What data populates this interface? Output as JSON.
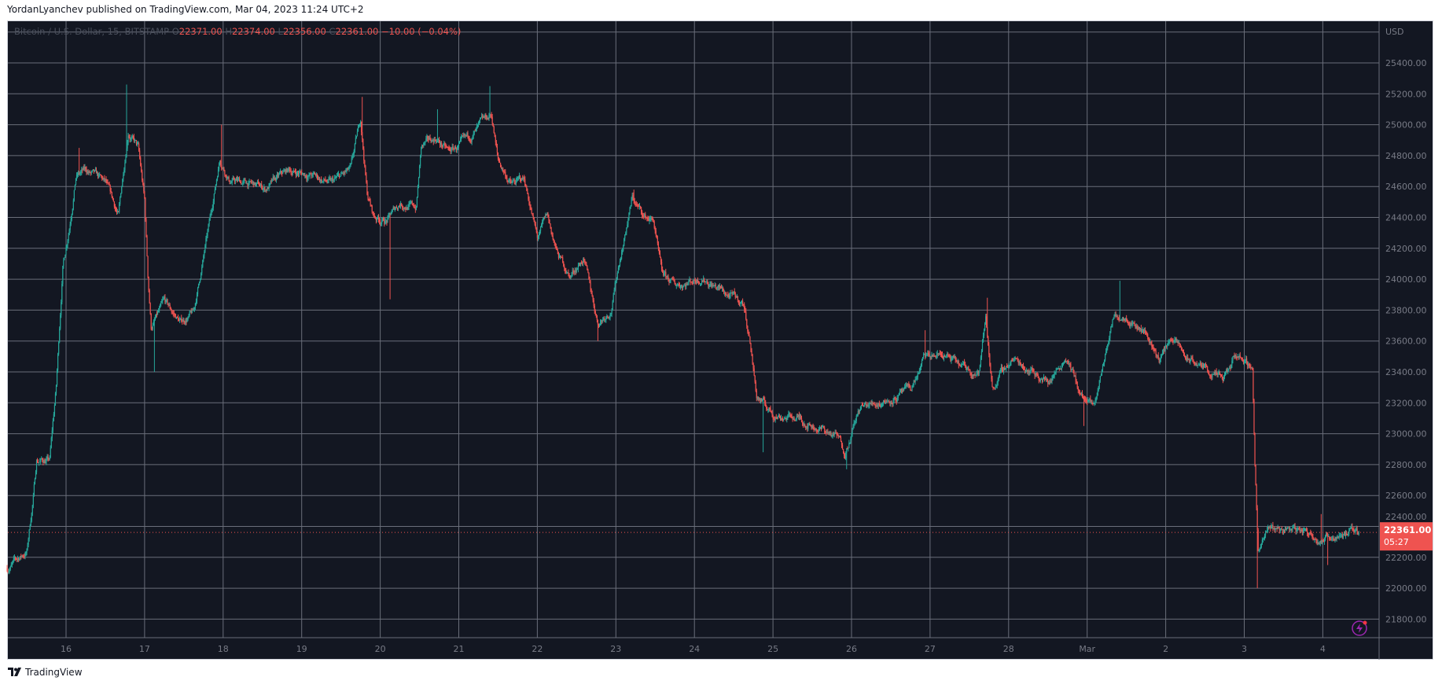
{
  "header": {
    "published": "YordanLyanchev published on TradingView.com, Mar 04, 2023 11:24 UTC+2"
  },
  "legend": {
    "symbol": "Bitcoin / U.S. Dollar, 15, BITSTAMP",
    "o_label": "O",
    "open": "22371.00",
    "h_label": "H",
    "high": "22374.00",
    "l_label": "L",
    "low": "22356.00",
    "c_label": "C",
    "close": "22361.00",
    "change": "−10.00 (−0.04%)"
  },
  "price_label": {
    "value": "22361.00",
    "countdown": "05:27"
  },
  "footer": {
    "brand": "TradingView"
  },
  "colors": {
    "up": "#26a69a",
    "down": "#ef5350",
    "background": "#131722",
    "grid": "#6a6e7a",
    "price_tag": "#ef5350",
    "lightning": "#9c27b0"
  },
  "icons": [
    "tradingview-logo-icon",
    "lightning-icon"
  ],
  "chart_data": {
    "type": "candlestick",
    "title": "Bitcoin / U.S. Dollar, 15, BITSTAMP",
    "interval": "15",
    "currency": "USD",
    "ylim": [
      21700,
      25700
    ],
    "y_ticks": [
      25400,
      25200,
      25000,
      24800,
      24600,
      24400,
      24200,
      24000,
      23800,
      23600,
      23400,
      23200,
      23000,
      22800,
      22600,
      22400,
      22200,
      22000,
      21800
    ],
    "y_tick_labels": [
      "25400.00",
      "25200.00",
      "25000.00",
      "24800.00",
      "24600.00",
      "24400.00",
      "24200.00",
      "24000.00",
      "23800.00",
      "23600.00",
      "23400.00",
      "23200.00",
      "23000.00",
      "22800.00",
      "22600.00",
      "22400.00",
      "22200.00",
      "22000.00",
      "21800.00"
    ],
    "x_ticks": [
      {
        "label": "16",
        "date": "2023-02-16"
      },
      {
        "label": "17",
        "date": "2023-02-17"
      },
      {
        "label": "18",
        "date": "2023-02-18"
      },
      {
        "label": "19",
        "date": "2023-02-19"
      },
      {
        "label": "20",
        "date": "2023-02-20"
      },
      {
        "label": "21",
        "date": "2023-02-21"
      },
      {
        "label": "22",
        "date": "2023-02-22"
      },
      {
        "label": "23",
        "date": "2023-02-23"
      },
      {
        "label": "24",
        "date": "2023-02-24"
      },
      {
        "label": "25",
        "date": "2023-02-25"
      },
      {
        "label": "26",
        "date": "2023-02-26"
      },
      {
        "label": "27",
        "date": "2023-02-27"
      },
      {
        "label": "28",
        "date": "2023-02-28"
      },
      {
        "label": "Mar",
        "date": "2023-03-01"
      },
      {
        "label": "2",
        "date": "2023-03-02"
      },
      {
        "label": "3",
        "date": "2023-03-03"
      },
      {
        "label": "4",
        "date": "2023-03-04"
      }
    ],
    "grid": true,
    "last_price": 22361,
    "approx_close_path": [
      [
        "2023-02-15T06:00",
        22130
      ],
      [
        "2023-02-15T12:00",
        22235
      ],
      [
        "2023-02-15T14:00",
        22590
      ],
      [
        "2023-02-15T15:00",
        22830
      ],
      [
        "2023-02-15T19:00",
        22830
      ],
      [
        "2023-02-15T21:00",
        23300
      ],
      [
        "2023-02-15T23:00",
        24080
      ],
      [
        "2023-02-16T01:00",
        24350
      ],
      [
        "2023-02-16T03:00",
        24675
      ],
      [
        "2023-02-16T06:00",
        24700
      ],
      [
        "2023-02-16T12:00",
        24615
      ],
      [
        "2023-02-16T16:00",
        24405
      ],
      [
        "2023-02-16T19:00",
        24970
      ],
      [
        "2023-02-16T22:00",
        24850
      ],
      [
        "2023-02-17T00:00",
        24500
      ],
      [
        "2023-02-17T01:00",
        24020
      ],
      [
        "2023-02-17T02:00",
        23690
      ],
      [
        "2023-02-17T06:00",
        23840
      ],
      [
        "2023-02-17T11:00",
        23720
      ],
      [
        "2023-02-17T15:00",
        23780
      ],
      [
        "2023-02-17T18:00",
        24140
      ],
      [
        "2023-02-17T20:00",
        24380
      ],
      [
        "2023-02-17T23:00",
        24790
      ],
      [
        "2023-02-18T02:00",
        24645
      ],
      [
        "2023-02-18T08:00",
        24615
      ],
      [
        "2023-02-18T13:00",
        24585
      ],
      [
        "2023-02-18T20:00",
        24700
      ],
      [
        "2023-02-19T03:00",
        24675
      ],
      [
        "2023-02-19T09:00",
        24615
      ],
      [
        "2023-02-19T15:00",
        24700
      ],
      [
        "2023-02-19T18:00",
        25030
      ],
      [
        "2023-02-19T20:00",
        24555
      ],
      [
        "2023-02-19T22:00",
        24405
      ],
      [
        "2023-02-20T02:00",
        24380
      ],
      [
        "2023-02-20T06:00",
        24495
      ],
      [
        "2023-02-20T11:00",
        24465
      ],
      [
        "2023-02-20T12:30",
        24850
      ],
      [
        "2023-02-20T17:00",
        24910
      ],
      [
        "2023-02-20T21:00",
        24820
      ],
      [
        "2023-02-21T02:00",
        24880
      ],
      [
        "2023-02-21T06:00",
        24970
      ],
      [
        "2023-02-21T10:00",
        25060
      ],
      [
        "2023-02-21T12:00",
        24765
      ],
      [
        "2023-02-21T16:00",
        24615
      ],
      [
        "2023-02-21T20:00",
        24645
      ],
      [
        "2023-02-21T22:00",
        24465
      ],
      [
        "2023-02-22T00:00",
        24260
      ],
      [
        "2023-02-22T03:00",
        24405
      ],
      [
        "2023-02-22T06:00",
        24165
      ],
      [
        "2023-02-22T10:00",
        24020
      ],
      [
        "2023-02-22T14:00",
        24140
      ],
      [
        "2023-02-22T18:30",
        23720
      ],
      [
        "2023-02-22T22:30",
        23810
      ],
      [
        "2023-02-23T01:30",
        24165
      ],
      [
        "2023-02-23T05:00",
        24525
      ],
      [
        "2023-02-23T08:30",
        24405
      ],
      [
        "2023-02-23T11:30",
        24380
      ],
      [
        "2023-02-23T14:00",
        24020
      ],
      [
        "2023-02-23T18:00",
        23960
      ],
      [
        "2023-02-23T22:30",
        23990
      ],
      [
        "2023-02-24T02:30",
        24020
      ],
      [
        "2023-02-24T10:00",
        23900
      ],
      [
        "2023-02-24T15:00",
        23840
      ],
      [
        "2023-02-24T17:00",
        23600
      ],
      [
        "2023-02-24T19:00",
        23245
      ],
      [
        "2023-02-24T23:45",
        23130
      ],
      [
        "2023-02-25T08:00",
        23100
      ],
      [
        "2023-02-25T14:00",
        23040
      ],
      [
        "2023-02-25T19:30",
        22980
      ],
      [
        "2023-02-25T22:00",
        22890
      ],
      [
        "2023-02-26T02:30",
        23160
      ],
      [
        "2023-02-26T09:30",
        23215
      ],
      [
        "2023-02-26T18:00",
        23275
      ],
      [
        "2023-02-26T22:15",
        23485
      ],
      [
        "2023-02-27T04:00",
        23515
      ],
      [
        "2023-02-27T09:30",
        23425
      ],
      [
        "2023-02-27T15:00",
        23400
      ],
      [
        "2023-02-27T17:00",
        23750
      ],
      [
        "2023-02-27T19:00",
        23305
      ],
      [
        "2023-02-28T01:00",
        23485
      ],
      [
        "2023-02-28T06:30",
        23425
      ],
      [
        "2023-02-28T12:00",
        23335
      ],
      [
        "2023-02-28T17:45",
        23515
      ],
      [
        "2023-02-28T22:00",
        23245
      ],
      [
        "2023-03-01T02:00",
        23160
      ],
      [
        "2023-03-01T05:00",
        23455
      ],
      [
        "2023-03-01T08:00",
        23750
      ],
      [
        "2023-03-01T12:00",
        23780
      ],
      [
        "2023-03-01T17:45",
        23660
      ],
      [
        "2023-03-01T22:00",
        23485
      ],
      [
        "2023-03-02T02:00",
        23630
      ],
      [
        "2023-03-02T06:15",
        23485
      ],
      [
        "2023-03-02T12:00",
        23425
      ],
      [
        "2023-03-02T17:30",
        23335
      ],
      [
        "2023-03-02T22:00",
        23515
      ],
      [
        "2023-03-03T02:30",
        23425
      ],
      [
        "2023-03-03T03:15",
        22830
      ],
      [
        "2023-03-03T04:15",
        22235
      ],
      [
        "2023-03-03T07:45",
        22385
      ],
      [
        "2023-03-03T16:00",
        22385
      ],
      [
        "2023-03-04T00:30",
        22325
      ],
      [
        "2023-03-04T06:00",
        22365
      ],
      [
        "2023-03-04T11:00",
        22361
      ]
    ],
    "notable_wicks": [
      [
        "2023-02-16T04:00",
        24850
      ],
      [
        "2023-02-16T18:30",
        25260
      ],
      [
        "2023-02-17T03:00",
        23400
      ],
      [
        "2023-02-17T23:30",
        25000
      ],
      [
        "2023-02-19T18:30",
        25180
      ],
      [
        "2023-02-20T03:00",
        23870
      ],
      [
        "2023-02-20T17:30",
        25100
      ],
      [
        "2023-02-21T09:30",
        25250
      ],
      [
        "2023-02-22T18:30",
        23600
      ],
      [
        "2023-02-23T05:30",
        24580
      ],
      [
        "2023-02-24T21:00",
        22880
      ],
      [
        "2023-02-25T22:30",
        22770
      ],
      [
        "2023-02-26T22:30",
        23670
      ],
      [
        "2023-02-27T17:30",
        23880
      ],
      [
        "2023-02-28T23:00",
        23050
      ],
      [
        "2023-03-01T10:00",
        23990
      ],
      [
        "2023-03-03T04:00",
        22000
      ],
      [
        "2023-03-03T23:30",
        22480
      ],
      [
        "2023-03-04T01:30",
        22150
      ]
    ]
  }
}
